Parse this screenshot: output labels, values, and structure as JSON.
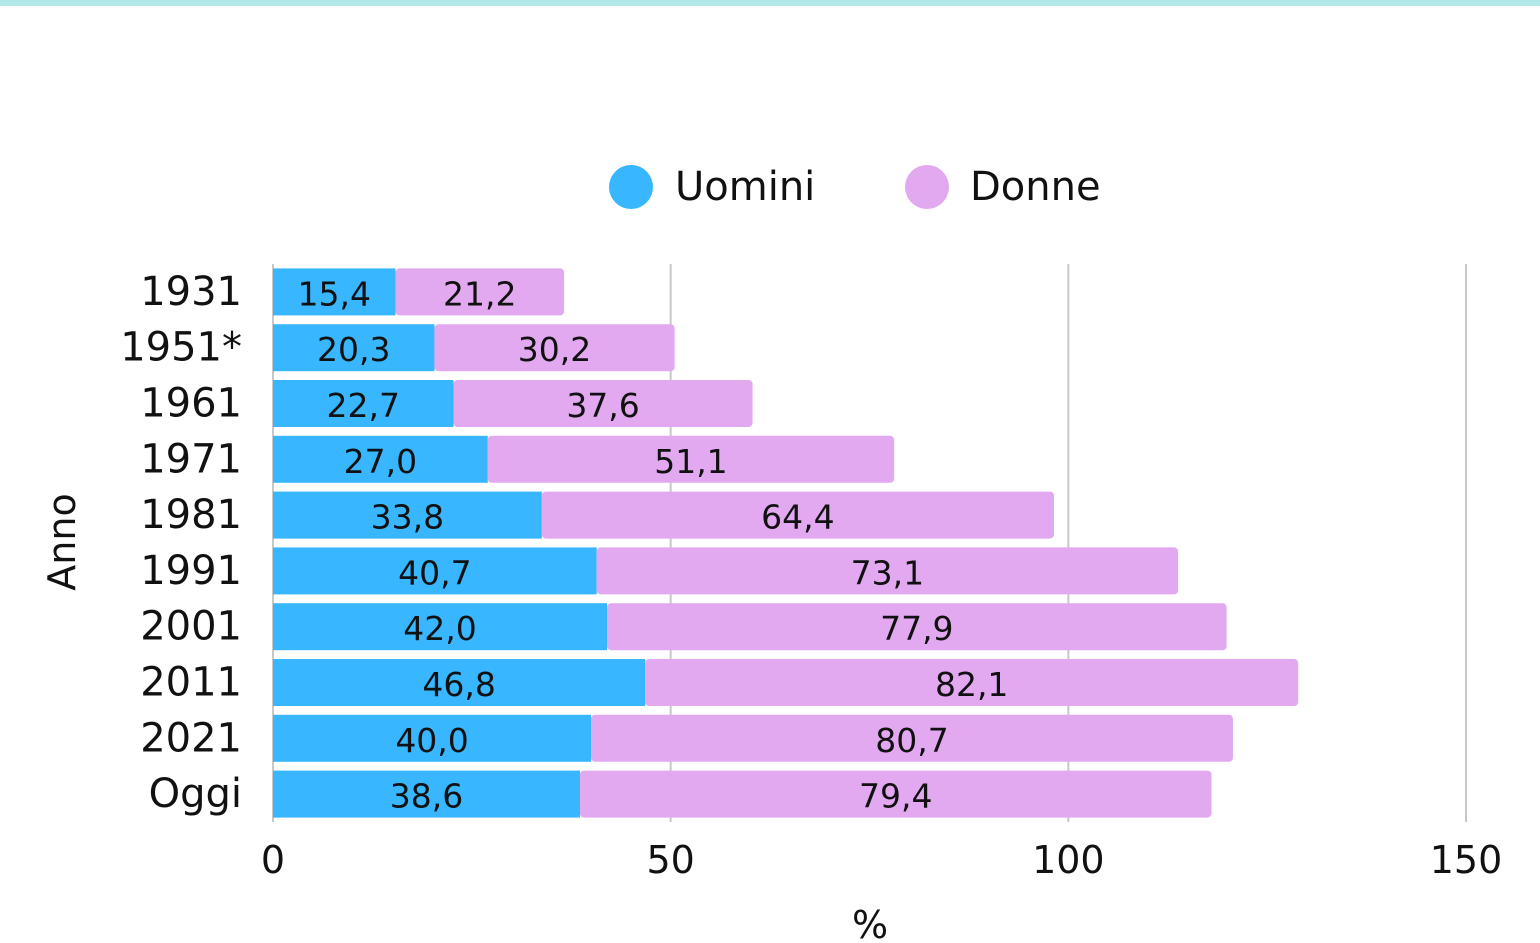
{
  "chart_data": {
    "type": "stacked_bar_horizontal",
    "categories": [
      "1931",
      "1951*",
      "1961",
      "1971",
      "1981",
      "1991",
      "2001",
      "2011",
      "2021",
      "Oggi"
    ],
    "series": [
      {
        "name": "Uomini",
        "color": "#38b6ff",
        "values": [
          15.4,
          20.3,
          22.7,
          27.0,
          33.8,
          40.7,
          42.0,
          46.8,
          40.0,
          38.6
        ],
        "value_labels": [
          "15,4",
          "20,3",
          "22,7",
          "27,0",
          "33,8",
          "40,7",
          "42,0",
          "46,8",
          "40,0",
          "38,6"
        ]
      },
      {
        "name": "Donne",
        "color": "#e2a9f1",
        "values": [
          21.2,
          30.2,
          37.6,
          51.1,
          64.4,
          73.1,
          77.9,
          82.1,
          80.7,
          79.4
        ],
        "value_labels": [
          "21,2",
          "30,2",
          "37,6",
          "51,1",
          "64,4",
          "73,1",
          "77,9",
          "82,1",
          "80,7",
          "79,4"
        ]
      }
    ],
    "xlabel": "%",
    "ylabel": "Anno",
    "xlim": [
      0,
      150
    ],
    "xticks": [
      0,
      50,
      100,
      150
    ],
    "grid": true,
    "legend": "top"
  }
}
